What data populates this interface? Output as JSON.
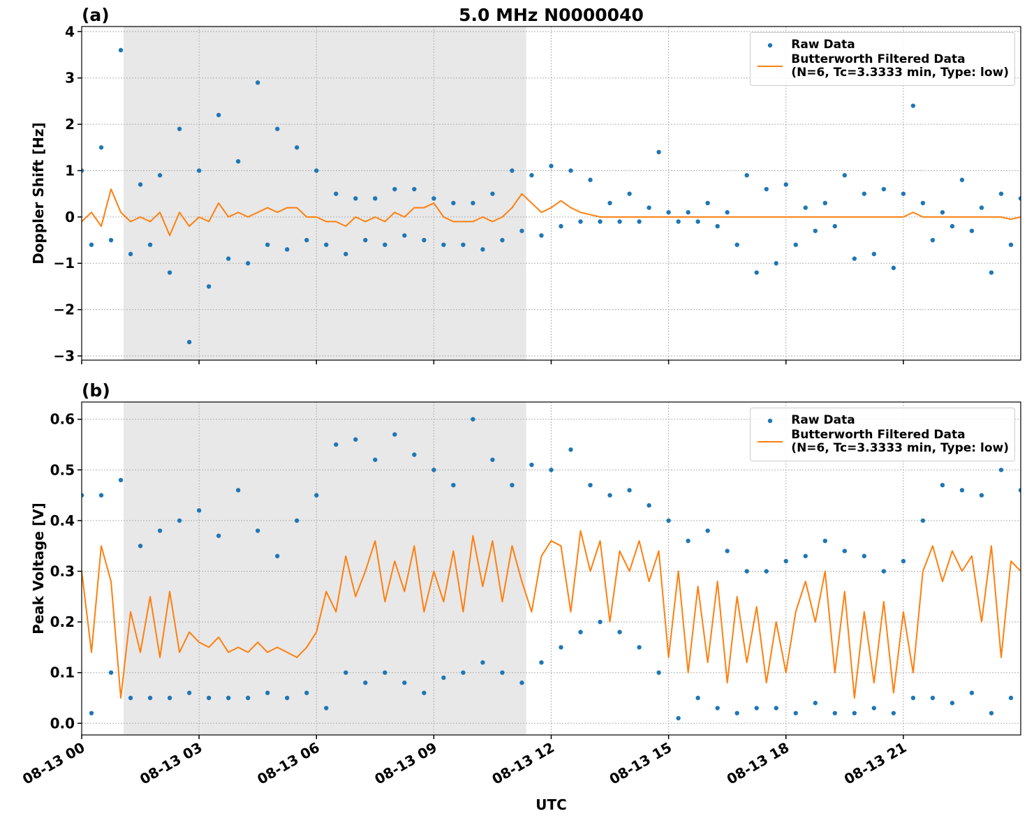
{
  "chart_data": [
    {
      "type": "line",
      "panel_label": "(a)",
      "title": "5.0 MHz N0000040",
      "ylabel": "Doppler Shift [Hz]",
      "xlim": [
        0,
        24
      ],
      "xticks": [
        0,
        3,
        6,
        9,
        12,
        15,
        18,
        21
      ],
      "ylim": [
        -3.09,
        4.11
      ],
      "yticks": [
        {
          "value": -3,
          "label": "−3"
        },
        {
          "value": -2,
          "label": "−2"
        },
        {
          "value": -1,
          "label": "−1"
        },
        0,
        1,
        2,
        3,
        4
      ],
      "grid": true,
      "legend": "upper right",
      "shade": [
        1.07,
        11.36
      ],
      "shade_color": "#e8e8e8",
      "x": [
        0,
        0.25,
        0.5,
        0.75,
        1,
        1.25,
        1.5,
        1.75,
        2,
        2.25,
        2.5,
        2.75,
        3,
        3.25,
        3.5,
        3.75,
        4,
        4.25,
        4.5,
        4.75,
        5,
        5.25,
        5.5,
        5.75,
        6,
        6.25,
        6.5,
        6.75,
        7,
        7.25,
        7.5,
        7.75,
        8,
        8.25,
        8.5,
        8.75,
        9,
        9.25,
        9.5,
        9.75,
        10,
        10.25,
        10.5,
        10.75,
        11,
        11.25,
        11.5,
        11.75,
        12,
        12.25,
        12.5,
        12.75,
        13,
        13.25,
        13.5,
        13.75,
        14,
        14.25,
        14.5,
        14.75,
        15,
        15.25,
        15.5,
        15.75,
        16,
        16.25,
        16.5,
        16.75,
        17,
        17.25,
        17.5,
        17.75,
        18,
        18.25,
        18.5,
        18.75,
        19,
        19.25,
        19.5,
        19.75,
        20,
        20.25,
        20.5,
        20.75,
        21,
        21.25,
        21.5,
        21.75,
        22,
        22.25,
        22.5,
        22.75,
        23,
        23.25,
        23.5,
        23.75,
        24
      ],
      "series": [
        {
          "name": "Raw Data",
          "type": "scatter",
          "color": "#1f77b4",
          "values": [
            1.0,
            -0.6,
            1.5,
            -0.5,
            3.6,
            -0.8,
            0.7,
            -0.6,
            0.9,
            -1.2,
            1.9,
            -2.7,
            1.0,
            -1.5,
            2.2,
            -0.9,
            1.2,
            -1.0,
            2.9,
            -0.6,
            1.9,
            -0.7,
            1.5,
            -0.5,
            1.0,
            -0.6,
            0.5,
            -0.8,
            0.4,
            -0.5,
            0.4,
            -0.6,
            0.6,
            -0.4,
            0.6,
            -0.5,
            0.4,
            -0.6,
            0.3,
            -0.6,
            0.3,
            -0.7,
            0.5,
            -0.5,
            1.0,
            -0.3,
            0.9,
            -0.4,
            1.1,
            -0.2,
            1.0,
            -0.1,
            0.8,
            -0.1,
            0.3,
            -0.1,
            0.5,
            -0.1,
            0.2,
            1.4,
            0.1,
            -0.1,
            0.1,
            -0.1,
            0.3,
            -0.2,
            0.1,
            -0.6,
            0.9,
            -1.2,
            0.6,
            -1.0,
            0.7,
            -0.6,
            0.2,
            -0.3,
            0.3,
            -0.2,
            0.9,
            -0.9,
            0.5,
            -0.8,
            0.6,
            -1.1,
            0.5,
            2.4,
            0.3,
            -0.5,
            0.1,
            -0.2,
            0.8,
            -0.3,
            0.2,
            -1.2,
            0.5,
            -0.6,
            0.4
          ]
        },
        {
          "name": "Butterworth Filtered Data\n(N=6, Tc=3.3333 min, Type: low)",
          "type": "line",
          "color": "#ff7f0e",
          "values": [
            -0.1,
            0.1,
            -0.2,
            0.6,
            0.1,
            -0.1,
            0.0,
            -0.1,
            0.1,
            -0.4,
            0.1,
            -0.2,
            0.0,
            -0.1,
            0.3,
            0.0,
            0.1,
            0.0,
            0.1,
            0.2,
            0.1,
            0.2,
            0.2,
            0.0,
            0.0,
            -0.1,
            -0.1,
            -0.2,
            0.0,
            -0.1,
            0.0,
            -0.1,
            0.1,
            0.0,
            0.2,
            0.2,
            0.3,
            0.0,
            -0.1,
            -0.1,
            -0.1,
            0.0,
            -0.1,
            0.0,
            0.2,
            0.5,
            0.3,
            0.1,
            0.2,
            0.35,
            0.2,
            0.1,
            0.05,
            0.0,
            0.0,
            0.0,
            0,
            0,
            0,
            0,
            0,
            0,
            0,
            0,
            0,
            0,
            0,
            0,
            0,
            0,
            0,
            0,
            0,
            0,
            0,
            0,
            0,
            0,
            0,
            0,
            0,
            0,
            0,
            0,
            0,
            0.1,
            0,
            0,
            0,
            0,
            0,
            0,
            0,
            0,
            0,
            -0.05,
            0
          ]
        }
      ]
    },
    {
      "type": "line",
      "panel_label": "(b)",
      "ylabel": "Peak Voltage [V]",
      "xlabel": "UTC",
      "xlim": [
        0,
        24
      ],
      "xticks": [
        {
          "value": 0,
          "label": "08-13 00"
        },
        {
          "value": 3,
          "label": "08-13 03"
        },
        {
          "value": 6,
          "label": "08-13 06"
        },
        {
          "value": 9,
          "label": "08-13 09"
        },
        {
          "value": 12,
          "label": "08-13 12"
        },
        {
          "value": 15,
          "label": "08-13 15"
        },
        {
          "value": 18,
          "label": "08-13 18"
        },
        {
          "value": 21,
          "label": "08-13 21"
        }
      ],
      "ylim": [
        -0.023,
        0.634
      ],
      "yticks": [
        {
          "value": 0,
          "label": "0.0"
        },
        0.1,
        0.2,
        0.3,
        0.4,
        0.5,
        0.6
      ],
      "grid": true,
      "legend": "upper right",
      "shade": [
        1.07,
        11.36
      ],
      "shade_color": "#e8e8e8",
      "x": [
        0,
        0.25,
        0.5,
        0.75,
        1,
        1.25,
        1.5,
        1.75,
        2,
        2.25,
        2.5,
        2.75,
        3,
        3.25,
        3.5,
        3.75,
        4,
        4.25,
        4.5,
        4.75,
        5,
        5.25,
        5.5,
        5.75,
        6,
        6.25,
        6.5,
        6.75,
        7,
        7.25,
        7.5,
        7.75,
        8,
        8.25,
        8.5,
        8.75,
        9,
        9.25,
        9.5,
        9.75,
        10,
        10.25,
        10.5,
        10.75,
        11,
        11.25,
        11.5,
        11.75,
        12,
        12.25,
        12.5,
        12.75,
        13,
        13.25,
        13.5,
        13.75,
        14,
        14.25,
        14.5,
        14.75,
        15,
        15.25,
        15.5,
        15.75,
        16,
        16.25,
        16.5,
        16.75,
        17,
        17.25,
        17.5,
        17.75,
        18,
        18.25,
        18.5,
        18.75,
        19,
        19.25,
        19.5,
        19.75,
        20,
        20.25,
        20.5,
        20.75,
        21,
        21.25,
        21.5,
        21.75,
        22,
        22.25,
        22.5,
        22.75,
        23,
        23.25,
        23.5,
        23.75,
        24
      ],
      "series": [
        {
          "name": "Raw Data",
          "type": "scatter",
          "color": "#1f77b4",
          "values": [
            0.45,
            0.02,
            0.45,
            0.1,
            0.48,
            0.05,
            0.35,
            0.05,
            0.38,
            0.05,
            0.4,
            0.06,
            0.42,
            0.05,
            0.37,
            0.05,
            0.46,
            0.05,
            0.38,
            0.06,
            0.33,
            0.05,
            0.4,
            0.06,
            0.45,
            0.03,
            0.55,
            0.1,
            0.56,
            0.08,
            0.52,
            0.1,
            0.57,
            0.08,
            0.53,
            0.06,
            0.5,
            0.09,
            0.47,
            0.1,
            0.6,
            0.12,
            0.52,
            0.1,
            0.47,
            0.08,
            0.51,
            0.12,
            0.5,
            0.15,
            0.54,
            0.18,
            0.47,
            0.2,
            0.45,
            0.18,
            0.46,
            0.15,
            0.43,
            0.1,
            0.4,
            0.01,
            0.36,
            0.05,
            0.38,
            0.03,
            0.34,
            0.02,
            0.3,
            0.03,
            0.3,
            0.03,
            0.32,
            0.02,
            0.33,
            0.04,
            0.36,
            0.02,
            0.34,
            0.02,
            0.33,
            0.03,
            0.3,
            0.02,
            0.32,
            0.05,
            0.4,
            0.05,
            0.47,
            0.04,
            0.46,
            0.06,
            0.45,
            0.02,
            0.5,
            0.05,
            0.46
          ]
        },
        {
          "name": "Butterworth Filtered Data\n(N=6, Tc=3.3333 min, Type: low)",
          "type": "line",
          "color": "#ff7f0e",
          "values": [
            0.3,
            0.14,
            0.35,
            0.28,
            0.05,
            0.22,
            0.14,
            0.25,
            0.13,
            0.26,
            0.14,
            0.18,
            0.16,
            0.15,
            0.17,
            0.14,
            0.15,
            0.14,
            0.16,
            0.14,
            0.15,
            0.14,
            0.13,
            0.15,
            0.18,
            0.26,
            0.22,
            0.33,
            0.25,
            0.3,
            0.36,
            0.24,
            0.32,
            0.26,
            0.35,
            0.22,
            0.3,
            0.24,
            0.34,
            0.22,
            0.37,
            0.27,
            0.36,
            0.24,
            0.35,
            0.28,
            0.22,
            0.33,
            0.36,
            0.35,
            0.22,
            0.38,
            0.3,
            0.36,
            0.2,
            0.34,
            0.3,
            0.36,
            0.28,
            0.34,
            0.13,
            0.3,
            0.1,
            0.27,
            0.12,
            0.28,
            0.08,
            0.25,
            0.12,
            0.23,
            0.08,
            0.2,
            0.1,
            0.22,
            0.28,
            0.2,
            0.3,
            0.1,
            0.26,
            0.05,
            0.22,
            0.08,
            0.24,
            0.06,
            0.22,
            0.1,
            0.3,
            0.35,
            0.28,
            0.34,
            0.3,
            0.33,
            0.2,
            0.35,
            0.13,
            0.32,
            0.3
          ]
        }
      ]
    }
  ]
}
